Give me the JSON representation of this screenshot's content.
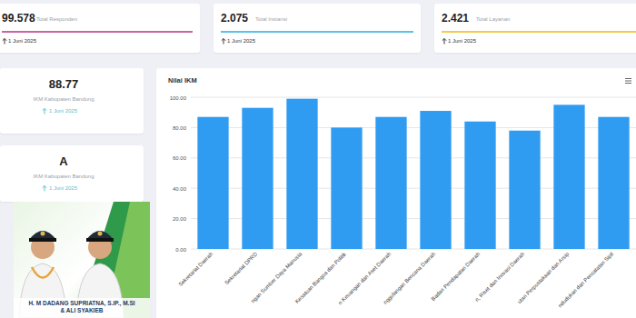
{
  "cards": [
    {
      "value": "99.578",
      "label": "Total Responden",
      "date": "1 Juni 2025"
    },
    {
      "value": "2.075",
      "label": "Total Instansi",
      "date": "1 Juni 2025"
    },
    {
      "value": "2.421",
      "label": "Total Layanan",
      "date": "1 Juni 2025"
    }
  ],
  "side_cards": [
    {
      "value": "88.77",
      "label": "IKM Kabupaten Bandung",
      "date": "1 Juni 2025"
    },
    {
      "value": "A",
      "label": "IKM Kabupaten Bandung",
      "date": "1 Juni 2025"
    }
  ],
  "banner": {
    "names": [
      "H. M DADANG SUPRIATNA, S.IP., M.SI",
      "& ALI SYAKIEB"
    ]
  },
  "chart_data": {
    "type": "bar",
    "title": "Nilai IKM",
    "categories": [
      "Sekretariat Daerah",
      "Sekretariat DPRD",
      "ngan Sumber Daya Manusia",
      "Kesatuan Bangsa dan Politik",
      "n Keuangan dan Aset Daerah",
      "nggulangan Bencana Daerah",
      "Badan Pendapatan Daerah",
      "n, Riset dan Inovasi Daerah",
      "utan Perpustakaan dan Arsip",
      "ndudukan dan Pencatatan Sipil"
    ],
    "values": [
      87,
      93,
      99,
      80,
      87,
      91,
      84,
      78,
      95,
      87
    ],
    "color": "#2f9cf2",
    "ylim": [
      0,
      100
    ],
    "yticks": [
      {
        "value": 0,
        "label": "0.00"
      },
      {
        "value": 20,
        "label": "20.00"
      },
      {
        "value": 40,
        "label": "40.00"
      },
      {
        "value": 60,
        "label": "60.00"
      },
      {
        "value": 80,
        "label": "80.00"
      },
      {
        "value": 100,
        "label": "100.00"
      }
    ],
    "grid": true
  }
}
